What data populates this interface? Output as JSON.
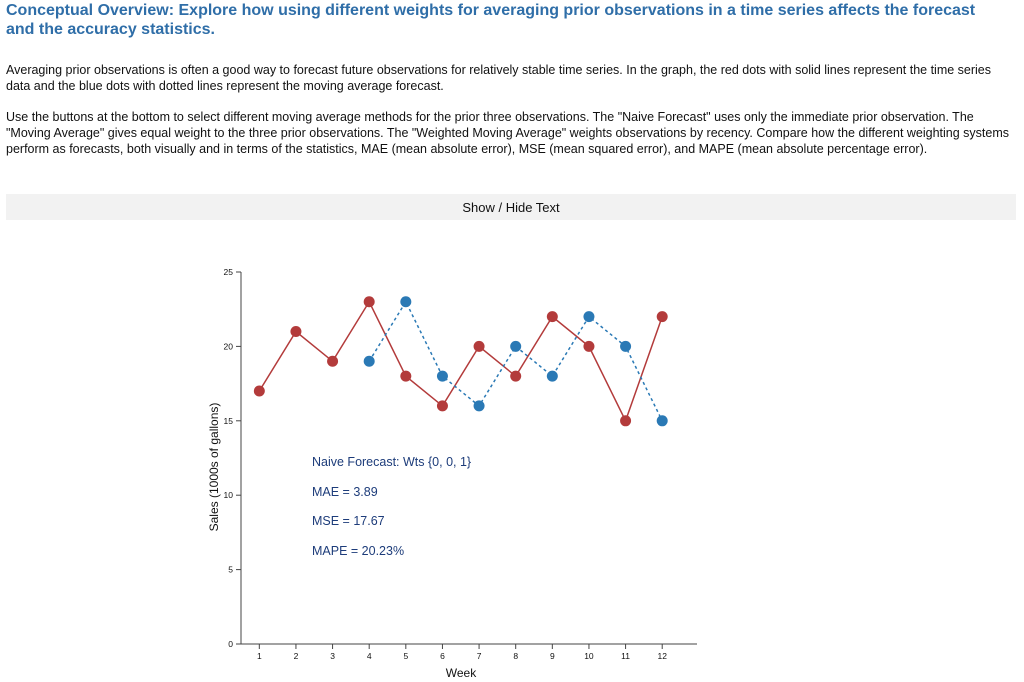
{
  "header": {
    "title": "Conceptual Overview: Explore how using different weights for averaging prior observations in a time series affects the forecast and the accuracy statistics."
  },
  "intro": {
    "paragraph1": "Averaging prior observations is often a good way to forecast future observations for relatively stable time series. In the graph, the red dots with solid lines represent the time series data and the blue dots with dotted lines represent the moving average forecast.",
    "paragraph2": "Use the buttons at the bottom to select different moving average methods for the prior three observations. The \"Naive Forecast\" uses only the immediate prior observation. The \"Moving Average\" gives equal weight to the three prior observations. The \"Weighted Moving Average\" weights observations by recency. Compare how the different weighting systems perform as forecasts, both visually and in terms of the statistics, MAE (mean absolute error), MSE (mean squared error), and MAPE (mean absolute percentage error)."
  },
  "controls": {
    "toggle_label": "Show / Hide Text"
  },
  "stats": {
    "method": "Naive Forecast: Wts {0, 0, 1}",
    "mae": "MAE = 3.89",
    "mse": "MSE = 17.67",
    "mape": "MAPE = 20.23%"
  },
  "colors": {
    "actual": "#b33b3b",
    "forecast": "#2a79b5"
  },
  "chart_data": {
    "type": "line",
    "title": "",
    "xlabel": "Week",
    "ylabel": "Sales (1000s of gallons)",
    "xlim": [
      0.5,
      12.95
    ],
    "ylim": [
      0,
      25
    ],
    "x_ticks": [
      1,
      2,
      3,
      4,
      5,
      6,
      7,
      8,
      9,
      10,
      11,
      12
    ],
    "y_ticks": [
      0,
      5,
      10,
      15,
      20,
      25
    ],
    "series": [
      {
        "name": "Time series data",
        "style": "solid",
        "x": [
          1,
          2,
          3,
          4,
          5,
          6,
          7,
          8,
          9,
          10,
          11,
          12
        ],
        "values": [
          17,
          21,
          19,
          23,
          18,
          16,
          20,
          18,
          22,
          20,
          15,
          22
        ]
      },
      {
        "name": "Moving average forecast",
        "style": "dotted",
        "x": [
          4,
          5,
          6,
          7,
          8,
          9,
          10,
          11,
          12
        ],
        "values": [
          19,
          23,
          18,
          16,
          20,
          18,
          22,
          20,
          15
        ]
      }
    ]
  }
}
